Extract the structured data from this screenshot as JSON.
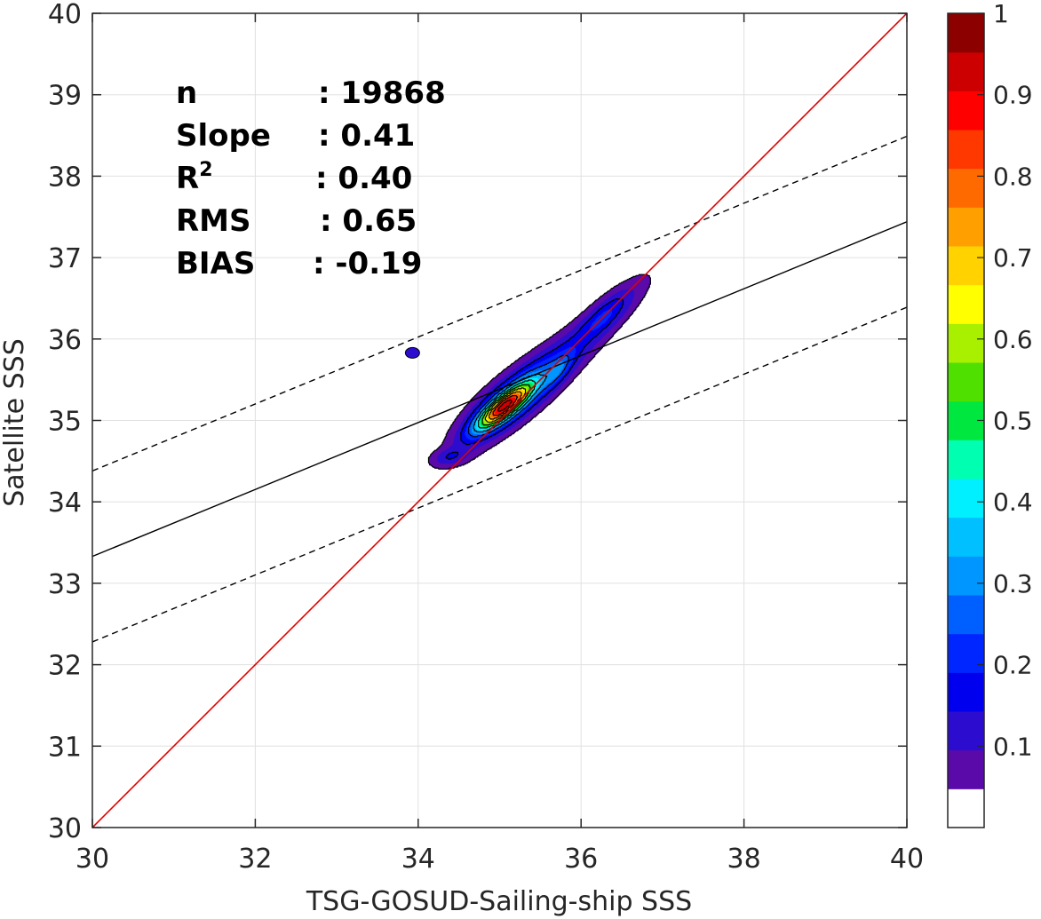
{
  "chart_data": {
    "type": "heatmap",
    "subtype": "density-contour-scatter",
    "xlabel": "TSG-GOSUD-Sailing-ship SSS",
    "ylabel": "Satellite SSS",
    "xlim": [
      30,
      40
    ],
    "ylim": [
      30,
      40
    ],
    "xticks": [
      "30",
      "32",
      "34",
      "36",
      "38",
      "40"
    ],
    "yticks": [
      "30",
      "31",
      "32",
      "33",
      "34",
      "35",
      "36",
      "37",
      "38",
      "39",
      "40"
    ],
    "grid": true,
    "stats": [
      {
        "key": "n",
        "value": ": 19868"
      },
      {
        "key": "Slope",
        "value": ": 0.41"
      },
      {
        "key": "R",
        "sup": "2",
        "value": ": 0.40"
      },
      {
        "key": "RMS",
        "value": ": 0.65"
      },
      {
        "key": "BIAS",
        "value": ": -0.19"
      }
    ],
    "identity_line": {
      "x": [
        30,
        40
      ],
      "y": [
        30,
        40
      ],
      "color": "#dd0000"
    },
    "fit_line": {
      "x": [
        30,
        40
      ],
      "y": [
        33.33,
        37.44
      ],
      "color": "#000000"
    },
    "envelope_lines": [
      {
        "x": [
          30,
          40
        ],
        "y": [
          34.38,
          38.49
        ],
        "style": "dashed"
      },
      {
        "x": [
          30,
          40
        ],
        "y": [
          32.28,
          36.39
        ],
        "style": "dashed"
      }
    ],
    "density_peaks": [
      {
        "x": 35.05,
        "y": 35.17,
        "density": 1.0
      },
      {
        "x": 35.72,
        "y": 35.62,
        "density": 0.55
      },
      {
        "x": 36.3,
        "y": 36.3,
        "density": 0.55
      }
    ],
    "contour_levels": [
      0.05,
      0.1,
      0.15,
      0.2,
      0.25,
      0.3,
      0.35,
      0.4,
      0.45,
      0.5,
      0.55,
      0.6,
      0.65,
      0.7,
      0.75,
      0.8,
      0.85,
      0.9,
      0.95
    ],
    "colorbar": {
      "ticks": [
        "0.1",
        "0.2",
        "0.3",
        "0.4",
        "0.5",
        "0.6",
        "0.7",
        "0.8",
        "0.9",
        "1"
      ],
      "tick_values": [
        0.1,
        0.2,
        0.3,
        0.4,
        0.5,
        0.6,
        0.7,
        0.8,
        0.9,
        1.0
      ],
      "colors": [
        "#ffffff",
        "#5a0aa8",
        "#2c0ccf",
        "#0000ee",
        "#0026ff",
        "#0060ff",
        "#0096ff",
        "#00c0ff",
        "#00f0ff",
        "#00ffb0",
        "#00e840",
        "#50e000",
        "#a8f000",
        "#ffff00",
        "#ffd200",
        "#ffa000",
        "#ff6a00",
        "#ff3800",
        "#ff0000",
        "#cc0000",
        "#8c0000"
      ]
    }
  }
}
